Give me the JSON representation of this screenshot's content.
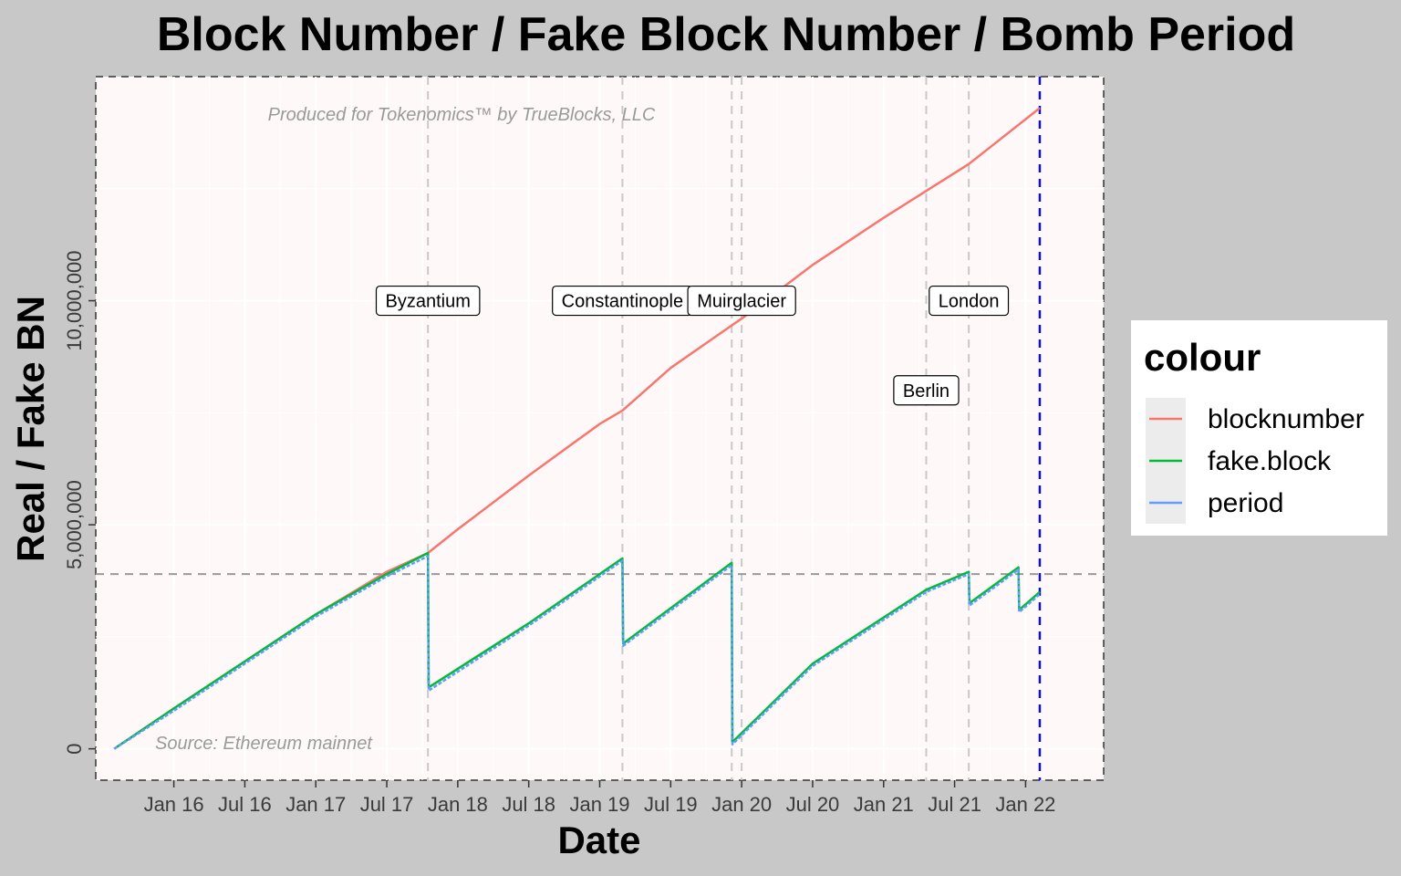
{
  "chart_data": {
    "type": "line",
    "title": "Block Number / Fake Block Number / Bomb Period",
    "xlabel": "Date",
    "ylabel": "Real / Fake BN",
    "xlim": [
      2015.45,
      2022.55
    ],
    "ylim": [
      -700000,
      15000000
    ],
    "x_ticks": [
      {
        "x": 2016.0,
        "label": "Jan 16"
      },
      {
        "x": 2016.5,
        "label": "Jul 16"
      },
      {
        "x": 2017.0,
        "label": "Jan 17"
      },
      {
        "x": 2017.5,
        "label": "Jul 17"
      },
      {
        "x": 2018.0,
        "label": "Jan 18"
      },
      {
        "x": 2018.5,
        "label": "Jul 18"
      },
      {
        "x": 2019.0,
        "label": "Jan 19"
      },
      {
        "x": 2019.5,
        "label": "Jul 19"
      },
      {
        "x": 2020.0,
        "label": "Jan 20"
      },
      {
        "x": 2020.5,
        "label": "Jul 20"
      },
      {
        "x": 2021.0,
        "label": "Jan 21"
      },
      {
        "x": 2021.5,
        "label": "Jul 21"
      },
      {
        "x": 2022.0,
        "label": "Jan 22"
      }
    ],
    "y_ticks": [
      {
        "y": 0,
        "label": "0"
      },
      {
        "y": 5000000,
        "label": "5,000,000"
      },
      {
        "y": 10000000,
        "label": "10,000,000"
      }
    ],
    "y_minor_ticks": [
      2500000,
      7500000,
      12500000
    ],
    "hline": 3900000,
    "fork_lines": [
      2017.79,
      2019.16,
      2019.93,
      2020.0,
      2021.3,
      2021.6
    ],
    "current_line": 2022.1,
    "series": [
      {
        "name": "blocknumber",
        "color": "#F8766D",
        "points": [
          [
            2015.58,
            0
          ],
          [
            2016.0,
            900000
          ],
          [
            2016.5,
            1950000
          ],
          [
            2017.0,
            3000000
          ],
          [
            2017.5,
            3950000
          ],
          [
            2017.79,
            4370000
          ],
          [
            2018.0,
            4900000
          ],
          [
            2018.5,
            6100000
          ],
          [
            2019.0,
            7250000
          ],
          [
            2019.16,
            7550000
          ],
          [
            2019.5,
            8500000
          ],
          [
            2019.93,
            9450000
          ],
          [
            2020.0,
            9600000
          ],
          [
            2020.5,
            10800000
          ],
          [
            2021.0,
            11850000
          ],
          [
            2021.3,
            12450000
          ],
          [
            2021.6,
            13050000
          ],
          [
            2022.1,
            14300000
          ]
        ]
      },
      {
        "name": "fake.block",
        "color": "#00BA38",
        "points": [
          [
            2015.58,
            0
          ],
          [
            2016.0,
            900000
          ],
          [
            2016.5,
            1950000
          ],
          [
            2017.0,
            3000000
          ],
          [
            2017.5,
            3900000
          ],
          [
            2017.79,
            4370000
          ],
          [
            2017.795,
            1370000
          ],
          [
            2018.5,
            2800000
          ],
          [
            2019.16,
            4250000
          ],
          [
            2019.165,
            2350000
          ],
          [
            2019.93,
            4150000
          ],
          [
            2019.935,
            150000
          ],
          [
            2020.5,
            1900000
          ],
          [
            2021.3,
            3550000
          ],
          [
            2021.6,
            3950000
          ],
          [
            2021.605,
            3250000
          ],
          [
            2021.95,
            4050000
          ],
          [
            2021.955,
            3100000
          ],
          [
            2022.1,
            3500000
          ]
        ]
      },
      {
        "name": "period",
        "color": "#619CFF",
        "points": [
          [
            2015.58,
            0
          ],
          [
            2016.0,
            850000
          ],
          [
            2016.5,
            1900000
          ],
          [
            2017.0,
            2950000
          ],
          [
            2017.5,
            3850000
          ],
          [
            2017.79,
            4300000
          ],
          [
            2017.795,
            1300000
          ],
          [
            2018.5,
            2750000
          ],
          [
            2019.16,
            4200000
          ],
          [
            2019.165,
            2300000
          ],
          [
            2019.93,
            4100000
          ],
          [
            2019.935,
            100000
          ],
          [
            2020.5,
            1850000
          ],
          [
            2021.3,
            3500000
          ],
          [
            2021.6,
            3900000
          ],
          [
            2021.605,
            3200000
          ],
          [
            2021.95,
            4000000
          ],
          [
            2021.955,
            3050000
          ],
          [
            2022.1,
            3450000
          ]
        ]
      }
    ],
    "annotations": [
      {
        "x": 2017.79,
        "y": 10000000,
        "label": "Byzantium"
      },
      {
        "x": 2019.16,
        "y": 10000000,
        "label": "Constantinople"
      },
      {
        "x": 2020.0,
        "y": 10000000,
        "label": "Muirglacier"
      },
      {
        "x": 2021.3,
        "y": 8000000,
        "label": "Berlin"
      },
      {
        "x": 2021.6,
        "y": 10000000,
        "label": "London"
      }
    ],
    "credit_top": "Produced for Tokenomics™ by TrueBlocks, LLC",
    "credit_bottom": "Source: Ethereum mainnet",
    "legend": {
      "title": "colour",
      "position": "right",
      "entries": [
        {
          "label": "blocknumber",
          "color": "#F8766D"
        },
        {
          "label": "fake.block",
          "color": "#00BA38"
        },
        {
          "label": "period",
          "color": "#619CFF"
        }
      ]
    },
    "grid": true
  }
}
